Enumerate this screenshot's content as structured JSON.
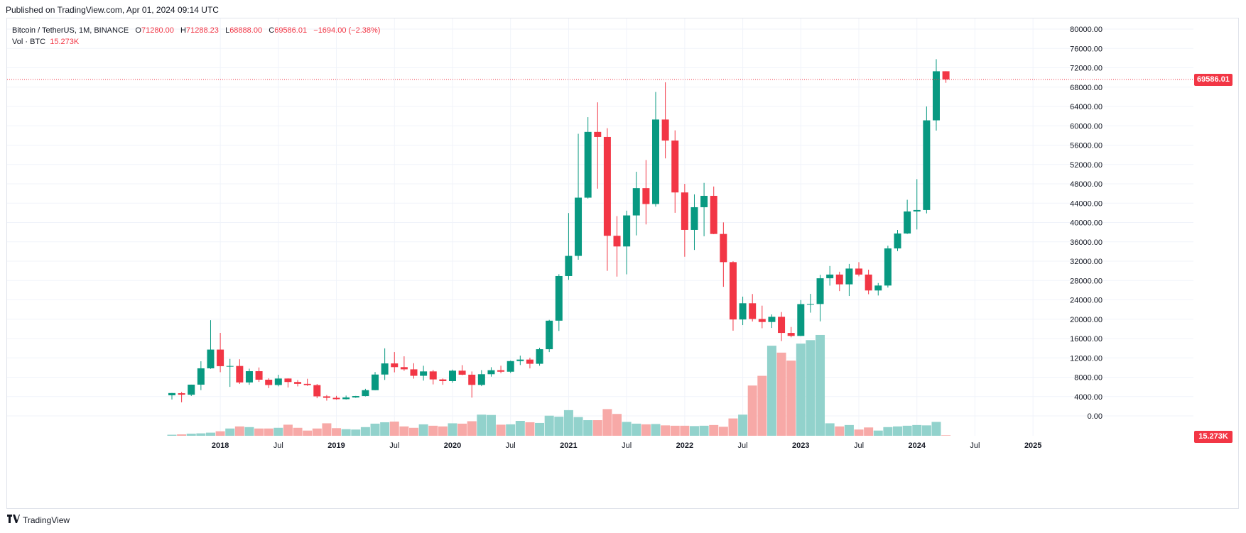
{
  "header": {
    "published": "Published on TradingView.com, Apr 01, 2024 09:14 UTC"
  },
  "legend": {
    "symbol": "Bitcoin / TetherUS, 1M, BINANCE",
    "open_label": "O",
    "open": "71280.00",
    "high_label": "H",
    "high": "71288.23",
    "low_label": "L",
    "low": "68888.00",
    "close_label": "C",
    "close": "69586.01",
    "change": "−1694.00 (−2.38%)",
    "vol_label": "Vol · BTC",
    "vol_value": "15.273K"
  },
  "price_tags": {
    "last_price": "69586.01",
    "last_volume": "15.273K"
  },
  "footer": {
    "brand": "TradingView"
  },
  "colors": {
    "up": "#089981",
    "down": "#f23645",
    "vol_up": "#92d2cc",
    "vol_down": "#f7a9a7",
    "grid": "#f0f3fa"
  },
  "chart_data": {
    "type": "candlestick",
    "interval": "1M",
    "y_axis": {
      "min": 0,
      "max": 80000,
      "ticks": [
        "80000.00",
        "76000.00",
        "72000.00",
        "68000.00",
        "64000.00",
        "60000.00",
        "56000.00",
        "52000.00",
        "48000.00",
        "44000.00",
        "40000.00",
        "36000.00",
        "32000.00",
        "28000.00",
        "24000.00",
        "20000.00",
        "16000.00",
        "12000.00",
        "8000.00",
        "4000.00",
        "0.00"
      ]
    },
    "x_axis": {
      "ticks": [
        "2018",
        "Jul",
        "2019",
        "Jul",
        "2020",
        "Jul",
        "2021",
        "Jul",
        "2022",
        "Jul",
        "2023",
        "Jul",
        "2024",
        "Jul",
        "2025"
      ]
    },
    "last_price_line": 69586.01,
    "candles": [
      {
        "t": "2017-08",
        "o": 4261,
        "h": 4745,
        "l": 3400,
        "c": 4724
      },
      {
        "t": "2017-09",
        "o": 4689,
        "h": 4939,
        "l": 2817,
        "c": 4378
      },
      {
        "t": "2017-10",
        "o": 4378,
        "h": 6470,
        "l": 4110,
        "c": 6463
      },
      {
        "t": "2017-11",
        "o": 6463,
        "h": 11300,
        "l": 5325,
        "c": 9838
      },
      {
        "t": "2017-12",
        "o": 9838,
        "h": 19798,
        "l": 9722,
        "c": 13716
      },
      {
        "t": "2018-01",
        "o": 13716,
        "h": 17176,
        "l": 9036,
        "c": 10285
      },
      {
        "t": "2018-02",
        "o": 10285,
        "h": 11786,
        "l": 6000,
        "c": 10326
      },
      {
        "t": "2018-03",
        "o": 10326,
        "h": 11710,
        "l": 6600,
        "c": 6923
      },
      {
        "t": "2018-04",
        "o": 6923,
        "h": 9765,
        "l": 6430,
        "c": 9246
      },
      {
        "t": "2018-05",
        "o": 9246,
        "h": 10020,
        "l": 7032,
        "c": 7485
      },
      {
        "t": "2018-06",
        "o": 7485,
        "h": 7786,
        "l": 5755,
        "c": 6391
      },
      {
        "t": "2018-07",
        "o": 6391,
        "h": 8507,
        "l": 6111,
        "c": 7730
      },
      {
        "t": "2018-08",
        "o": 7730,
        "h": 7760,
        "l": 5880,
        "c": 7011
      },
      {
        "t": "2018-09",
        "o": 7011,
        "h": 7410,
        "l": 6100,
        "c": 6626
      },
      {
        "t": "2018-10",
        "o": 6626,
        "h": 7680,
        "l": 6200,
        "c": 6371
      },
      {
        "t": "2018-11",
        "o": 6371,
        "h": 6600,
        "l": 3652,
        "c": 4041
      },
      {
        "t": "2018-12",
        "o": 4041,
        "h": 4312,
        "l": 3156,
        "c": 3742
      },
      {
        "t": "2019-01",
        "o": 3742,
        "h": 4140,
        "l": 3349,
        "c": 3458
      },
      {
        "t": "2019-02",
        "o": 3458,
        "h": 4198,
        "l": 3380,
        "c": 3812
      },
      {
        "t": "2019-03",
        "o": 3812,
        "h": 4140,
        "l": 3733,
        "c": 4103
      },
      {
        "t": "2019-04",
        "o": 4103,
        "h": 5600,
        "l": 4030,
        "c": 5320
      },
      {
        "t": "2019-05",
        "o": 5320,
        "h": 9074,
        "l": 5300,
        "c": 8555
      },
      {
        "t": "2019-06",
        "o": 8555,
        "h": 13970,
        "l": 7440,
        "c": 10854
      },
      {
        "t": "2019-07",
        "o": 10854,
        "h": 13200,
        "l": 9010,
        "c": 10085
      },
      {
        "t": "2019-08",
        "o": 10085,
        "h": 12325,
        "l": 9320,
        "c": 9630
      },
      {
        "t": "2019-09",
        "o": 9630,
        "h": 10905,
        "l": 7710,
        "c": 8293
      },
      {
        "t": "2019-10",
        "o": 8293,
        "h": 10370,
        "l": 7300,
        "c": 9199
      },
      {
        "t": "2019-11",
        "o": 9199,
        "h": 9505,
        "l": 6515,
        "c": 7546
      },
      {
        "t": "2019-12",
        "o": 7546,
        "h": 7750,
        "l": 6435,
        "c": 7195
      },
      {
        "t": "2020-01",
        "o": 7195,
        "h": 9578,
        "l": 6871,
        "c": 9352
      },
      {
        "t": "2020-02",
        "o": 9352,
        "h": 10500,
        "l": 8410,
        "c": 8523
      },
      {
        "t": "2020-03",
        "o": 8523,
        "h": 9188,
        "l": 3782,
        "c": 6411
      },
      {
        "t": "2020-04",
        "o": 6411,
        "h": 9467,
        "l": 6150,
        "c": 8620
      },
      {
        "t": "2020-05",
        "o": 8620,
        "h": 10067,
        "l": 8117,
        "c": 9448
      },
      {
        "t": "2020-06",
        "o": 9448,
        "h": 10380,
        "l": 8833,
        "c": 9138
      },
      {
        "t": "2020-07",
        "o": 9138,
        "h": 11444,
        "l": 8893,
        "c": 11335
      },
      {
        "t": "2020-08",
        "o": 11335,
        "h": 12468,
        "l": 10518,
        "c": 11649
      },
      {
        "t": "2020-09",
        "o": 11649,
        "h": 12050,
        "l": 9825,
        "c": 10776
      },
      {
        "t": "2020-10",
        "o": 10776,
        "h": 14100,
        "l": 10375,
        "c": 13791
      },
      {
        "t": "2020-11",
        "o": 13791,
        "h": 19863,
        "l": 13195,
        "c": 19695
      },
      {
        "t": "2020-12",
        "o": 19695,
        "h": 29300,
        "l": 17572,
        "c": 28923
      },
      {
        "t": "2021-01",
        "o": 28923,
        "h": 41950,
        "l": 28130,
        "c": 33092
      },
      {
        "t": "2021-02",
        "o": 33092,
        "h": 58352,
        "l": 32296,
        "c": 45136
      },
      {
        "t": "2021-03",
        "o": 45136,
        "h": 61788,
        "l": 44950,
        "c": 58740
      },
      {
        "t": "2021-04",
        "o": 58740,
        "h": 64854,
        "l": 47000,
        "c": 57694
      },
      {
        "t": "2021-05",
        "o": 57694,
        "h": 59500,
        "l": 30000,
        "c": 37253
      },
      {
        "t": "2021-06",
        "o": 37253,
        "h": 41330,
        "l": 28805,
        "c": 35045
      },
      {
        "t": "2021-07",
        "o": 35045,
        "h": 42448,
        "l": 29278,
        "c": 41461
      },
      {
        "t": "2021-08",
        "o": 41461,
        "h": 50500,
        "l": 37332,
        "c": 47100
      },
      {
        "t": "2021-09",
        "o": 47100,
        "h": 52920,
        "l": 39600,
        "c": 43824
      },
      {
        "t": "2021-10",
        "o": 43824,
        "h": 67000,
        "l": 43283,
        "c": 61299
      },
      {
        "t": "2021-11",
        "o": 61299,
        "h": 69000,
        "l": 53256,
        "c": 56950
      },
      {
        "t": "2021-12",
        "o": 56950,
        "h": 59053,
        "l": 42000,
        "c": 46216
      },
      {
        "t": "2022-01",
        "o": 46216,
        "h": 47990,
        "l": 32917,
        "c": 38466
      },
      {
        "t": "2022-02",
        "o": 38466,
        "h": 45821,
        "l": 34322,
        "c": 43160
      },
      {
        "t": "2022-03",
        "o": 43160,
        "h": 48189,
        "l": 37155,
        "c": 45510
      },
      {
        "t": "2022-04",
        "o": 45510,
        "h": 47444,
        "l": 37578,
        "c": 37630
      },
      {
        "t": "2022-05",
        "o": 37630,
        "h": 40023,
        "l": 26700,
        "c": 31801
      },
      {
        "t": "2022-06",
        "o": 31801,
        "h": 31982,
        "l": 17622,
        "c": 19942
      },
      {
        "t": "2022-07",
        "o": 19942,
        "h": 24668,
        "l": 18782,
        "c": 23296
      },
      {
        "t": "2022-08",
        "o": 23296,
        "h": 25211,
        "l": 19520,
        "c": 20050
      },
      {
        "t": "2022-09",
        "o": 20050,
        "h": 22800,
        "l": 18125,
        "c": 19422
      },
      {
        "t": "2022-10",
        "o": 19422,
        "h": 20988,
        "l": 18190,
        "c": 20491
      },
      {
        "t": "2022-11",
        "o": 20491,
        "h": 21480,
        "l": 15476,
        "c": 17163
      },
      {
        "t": "2022-12",
        "o": 17163,
        "h": 18388,
        "l": 16256,
        "c": 16542
      },
      {
        "t": "2023-01",
        "o": 16542,
        "h": 23960,
        "l": 16499,
        "c": 23125
      },
      {
        "t": "2023-02",
        "o": 23125,
        "h": 25250,
        "l": 21351,
        "c": 23141
      },
      {
        "t": "2023-03",
        "o": 23141,
        "h": 29184,
        "l": 19549,
        "c": 28465
      },
      {
        "t": "2023-04",
        "o": 28465,
        "h": 31000,
        "l": 26942,
        "c": 29233
      },
      {
        "t": "2023-05",
        "o": 29233,
        "h": 29820,
        "l": 25811,
        "c": 27210
      },
      {
        "t": "2023-06",
        "o": 27210,
        "h": 31431,
        "l": 24800,
        "c": 30472
      },
      {
        "t": "2023-07",
        "o": 30472,
        "h": 31804,
        "l": 28861,
        "c": 29232
      },
      {
        "t": "2023-08",
        "o": 29232,
        "h": 30244,
        "l": 25166,
        "c": 25941
      },
      {
        "t": "2023-09",
        "o": 25941,
        "h": 27483,
        "l": 24901,
        "c": 26962
      },
      {
        "t": "2023-10",
        "o": 26962,
        "h": 35198,
        "l": 26538,
        "c": 34639
      },
      {
        "t": "2023-11",
        "o": 34639,
        "h": 38450,
        "l": 34097,
        "c": 37723
      },
      {
        "t": "2023-12",
        "o": 37723,
        "h": 44700,
        "l": 37629,
        "c": 42283
      },
      {
        "t": "2024-01",
        "o": 42283,
        "h": 48969,
        "l": 38555,
        "c": 42582
      },
      {
        "t": "2024-02",
        "o": 42582,
        "h": 64000,
        "l": 41884,
        "c": 61130
      },
      {
        "t": "2024-03",
        "o": 61130,
        "h": 73777,
        "l": 59005,
        "c": 71280
      },
      {
        "t": "2024-04",
        "o": 71280,
        "h": 71288.23,
        "l": 68888,
        "c": 69586.01
      }
    ],
    "volume": [
      {
        "t": "2017-08",
        "v": 0.3
      },
      {
        "t": "2017-09",
        "v": 0.4
      },
      {
        "t": "2017-10",
        "v": 0.6
      },
      {
        "t": "2017-11",
        "v": 0.7
      },
      {
        "t": "2017-12",
        "v": 0.9
      },
      {
        "t": "2018-01",
        "v": 1.3
      },
      {
        "t": "2018-02",
        "v": 2.1
      },
      {
        "t": "2018-03",
        "v": 2.7
      },
      {
        "t": "2018-04",
        "v": 2.5
      },
      {
        "t": "2018-05",
        "v": 2.1
      },
      {
        "t": "2018-06",
        "v": 2.1
      },
      {
        "t": "2018-07",
        "v": 2.3
      },
      {
        "t": "2018-08",
        "v": 3.2
      },
      {
        "t": "2018-09",
        "v": 2.3
      },
      {
        "t": "2018-10",
        "v": 1.5
      },
      {
        "t": "2018-11",
        "v": 2.1
      },
      {
        "t": "2018-12",
        "v": 3.6
      },
      {
        "t": "2019-01",
        "v": 2.2
      },
      {
        "t": "2019-02",
        "v": 1.9
      },
      {
        "t": "2019-03",
        "v": 1.8
      },
      {
        "t": "2019-04",
        "v": 2.5
      },
      {
        "t": "2019-05",
        "v": 3.5
      },
      {
        "t": "2019-06",
        "v": 3.9
      },
      {
        "t": "2019-07",
        "v": 4.1
      },
      {
        "t": "2019-08",
        "v": 2.7
      },
      {
        "t": "2019-09",
        "v": 2.3
      },
      {
        "t": "2019-10",
        "v": 3.3
      },
      {
        "t": "2019-11",
        "v": 2.9
      },
      {
        "t": "2019-12",
        "v": 2.7
      },
      {
        "t": "2020-01",
        "v": 3.6
      },
      {
        "t": "2020-02",
        "v": 3.5
      },
      {
        "t": "2020-03",
        "v": 4.2
      },
      {
        "t": "2020-04",
        "v": 6.1
      },
      {
        "t": "2020-05",
        "v": 6.0
      },
      {
        "t": "2020-06",
        "v": 3.2
      },
      {
        "t": "2020-07",
        "v": 3.3
      },
      {
        "t": "2020-08",
        "v": 4.3
      },
      {
        "t": "2020-09",
        "v": 3.9
      },
      {
        "t": "2020-10",
        "v": 3.7
      },
      {
        "t": "2020-11",
        "v": 5.8
      },
      {
        "t": "2020-12",
        "v": 5.5
      },
      {
        "t": "2021-01",
        "v": 7.4
      },
      {
        "t": "2021-02",
        "v": 5.4
      },
      {
        "t": "2021-03",
        "v": 4.5
      },
      {
        "t": "2021-04",
        "v": 4.5
      },
      {
        "t": "2021-05",
        "v": 7.7
      },
      {
        "t": "2021-06",
        "v": 6.3
      },
      {
        "t": "2021-07",
        "v": 4.0
      },
      {
        "t": "2021-08",
        "v": 3.5
      },
      {
        "t": "2021-09",
        "v": 3.3
      },
      {
        "t": "2021-10",
        "v": 3.4
      },
      {
        "t": "2021-11",
        "v": 3.0
      },
      {
        "t": "2021-12",
        "v": 2.9
      },
      {
        "t": "2022-01",
        "v": 2.9
      },
      {
        "t": "2022-02",
        "v": 2.8
      },
      {
        "t": "2022-03",
        "v": 2.9
      },
      {
        "t": "2022-04",
        "v": 3.1
      },
      {
        "t": "2022-05",
        "v": 2.6
      },
      {
        "t": "2022-06",
        "v": 5.0
      },
      {
        "t": "2022-07",
        "v": 6.1
      },
      {
        "t": "2022-08",
        "v": 14.5
      },
      {
        "t": "2022-09",
        "v": 17.3
      },
      {
        "t": "2022-10",
        "v": 26.0
      },
      {
        "t": "2022-11",
        "v": 24.0
      },
      {
        "t": "2022-12",
        "v": 21.7
      },
      {
        "t": "2023-01",
        "v": 26.6
      },
      {
        "t": "2023-02",
        "v": 27.6
      },
      {
        "t": "2023-03",
        "v": 29.1
      },
      {
        "t": "2023-04",
        "v": 3.6
      },
      {
        "t": "2023-05",
        "v": 2.7
      },
      {
        "t": "2023-06",
        "v": 3.1
      },
      {
        "t": "2023-07",
        "v": 1.8
      },
      {
        "t": "2023-08",
        "v": 2.4
      },
      {
        "t": "2023-09",
        "v": 1.5
      },
      {
        "t": "2023-10",
        "v": 2.5
      },
      {
        "t": "2023-11",
        "v": 2.7
      },
      {
        "t": "2023-12",
        "v": 2.9
      },
      {
        "t": "2024-01",
        "v": 3.1
      },
      {
        "t": "2024-02",
        "v": 3.0
      },
      {
        "t": "2024-03",
        "v": 4.0
      },
      {
        "t": "2024-04",
        "v": 0.15
      }
    ],
    "volume_max": 29.5
  }
}
